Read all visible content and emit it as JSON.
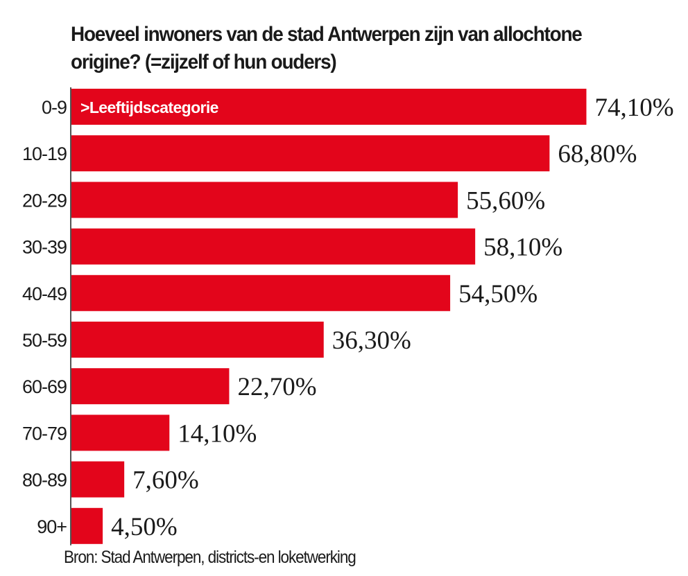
{
  "chart_data": {
    "type": "bar",
    "orientation": "horizontal",
    "title": "Hoeveel inwoners van de stad Antwerpen zijn van allochtone origine? (=zijzelf of hun ouders)",
    "category_header": ">Leeftijdscategorie",
    "source": "Bron: Stad Antwerpen, districts-en loketwerking",
    "categories": [
      "0-9",
      "10-19",
      "20-29",
      "30-39",
      "40-49",
      "50-59",
      "60-69",
      "70-79",
      "80-89",
      "90+"
    ],
    "values": [
      74.1,
      68.8,
      55.6,
      58.1,
      54.5,
      36.3,
      22.7,
      14.1,
      7.6,
      4.5
    ],
    "value_labels": [
      "74,10%",
      "68,80%",
      "55,60%",
      "58,10%",
      "54,50%",
      "36,30%",
      "22,70%",
      "14,10%",
      "7,60%",
      "4,50%"
    ],
    "unit": "%",
    "grid": false,
    "legend": "none",
    "bar_color": "#e3051b"
  }
}
